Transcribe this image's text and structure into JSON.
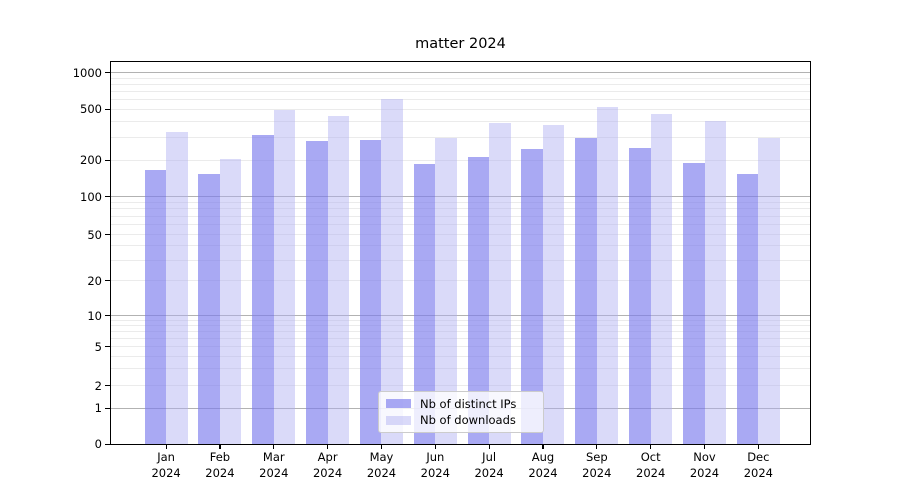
{
  "chart_data": {
    "type": "bar",
    "title": "matter 2024",
    "xlabel": "",
    "ylabel": "",
    "yscale": "log-like (compressed near zero)",
    "grid": true,
    "yticks": [
      0,
      1,
      2,
      5,
      10,
      20,
      50,
      100,
      200,
      500,
      1000
    ],
    "ylim": [
      0,
      1150
    ],
    "categories": [
      "Jan 2024",
      "Feb 2024",
      "Mar 2024",
      "Apr 2024",
      "May 2024",
      "Jun 2024",
      "Jul 2024",
      "Aug 2024",
      "Sep 2024",
      "Oct 2024",
      "Nov 2024",
      "Dec 2024"
    ],
    "series": [
      {
        "name": "Nb of distinct IPs",
        "fill": "rgba(123,123,237,0.65)",
        "values": [
          165,
          155,
          315,
          283,
          289,
          188,
          213,
          245,
          296,
          250,
          191,
          153
        ]
      },
      {
        "name": "Nb of downloads",
        "fill": "rgba(173,173,242,0.45)",
        "values": [
          331,
          205,
          498,
          441,
          608,
          301,
          392,
          377,
          524,
          461,
          406,
          297
        ]
      }
    ],
    "legend_position": "bottom-center"
  }
}
